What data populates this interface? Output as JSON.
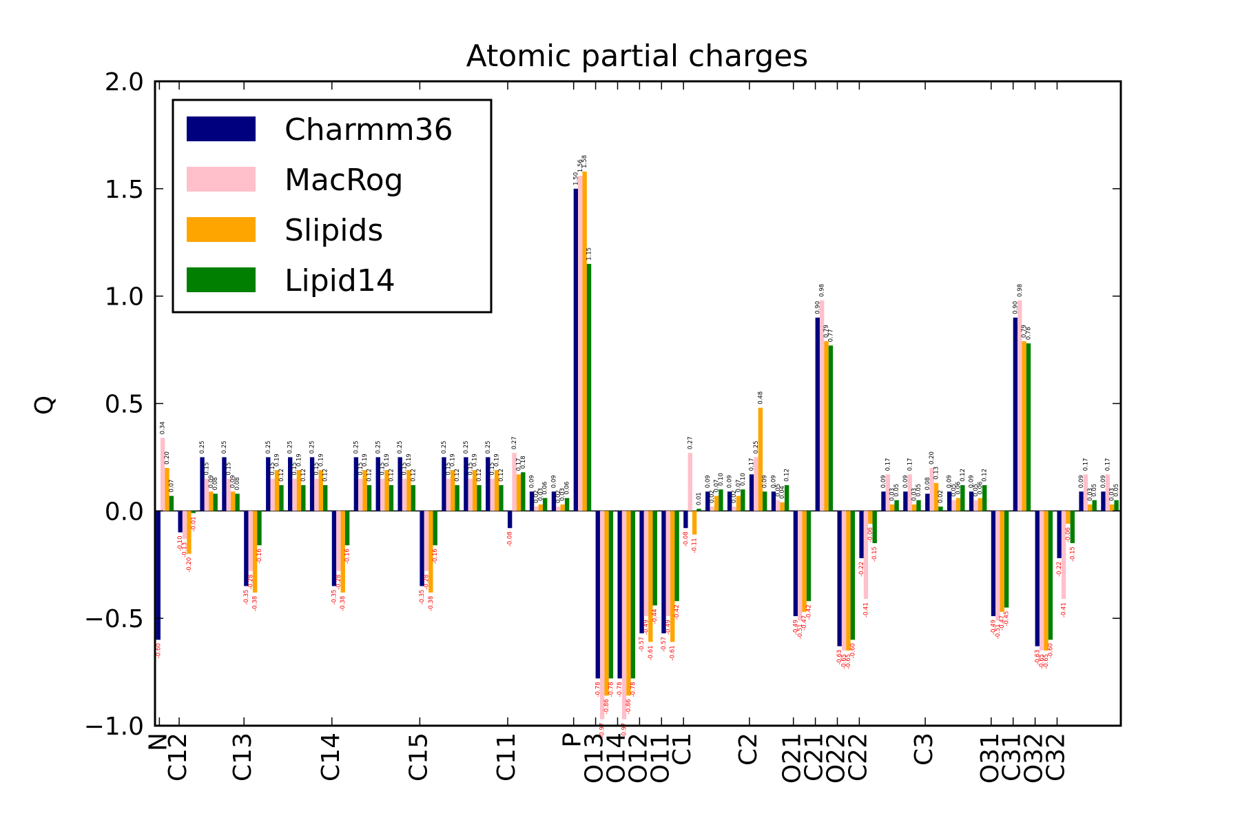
{
  "chart_data": {
    "type": "bar",
    "title": "Atomic partial charges",
    "ylabel": "Q",
    "xlabel": "",
    "ylim": [
      -1.0,
      2.0
    ],
    "yticks": [
      "−1.0",
      "−0.5",
      "0.0",
      "0.5",
      "1.0",
      "1.5",
      "2.0"
    ],
    "ytick_values": [
      -1.0,
      -0.5,
      0.0,
      0.5,
      1.0,
      1.5,
      2.0
    ],
    "legend_position": "upper-left",
    "colors": {
      "Charmm36": "#00007f",
      "MacRog": "#ffc0cb",
      "Slipids": "#ffa500",
      "Lipid14": "#007f00",
      "positive_label": "#000000",
      "negative_label": "#ff0000"
    },
    "categories": [
      "N",
      "C12",
      "",
      "",
      "C13",
      "",
      "",
      "",
      "C14",
      "",
      "",
      "",
      "C15",
      "",
      "",
      "",
      "C11",
      "",
      "",
      "P",
      "O13",
      "O14",
      "O12",
      "O11",
      "C1",
      "",
      "",
      "C2",
      "",
      "",
      "O21",
      "C21",
      "O22",
      "C22",
      "",
      "",
      "C3",
      "",
      "",
      "O31",
      "C31",
      "O32",
      "C32",
      ""
    ],
    "tick_labels": [
      {
        "label": "N",
        "pos": 0.15
      },
      {
        "label": "C12",
        "pos": 1.05
      },
      {
        "label": "C13",
        "pos": 4
      },
      {
        "label": "C14",
        "pos": 8
      },
      {
        "label": "C15",
        "pos": 12
      },
      {
        "label": "C11",
        "pos": 16
      },
      {
        "label": "P",
        "pos": 19
      },
      {
        "label": "O13",
        "pos": 20
      },
      {
        "label": "O14",
        "pos": 21
      },
      {
        "label": "O12",
        "pos": 22
      },
      {
        "label": "O11",
        "pos": 23
      },
      {
        "label": "C1",
        "pos": 24
      },
      {
        "label": "C2",
        "pos": 27
      },
      {
        "label": "O21",
        "pos": 29
      },
      {
        "label": "C21",
        "pos": 30
      },
      {
        "label": "O22",
        "pos": 31
      },
      {
        "label": "C22",
        "pos": 32
      },
      {
        "label": "C3",
        "pos": 35
      },
      {
        "label": "O31",
        "pos": 38
      },
      {
        "label": "C31",
        "pos": 39
      },
      {
        "label": "O32",
        "pos": 40
      },
      {
        "label": "C32",
        "pos": 41
      }
    ],
    "series": [
      {
        "name": "Charmm36",
        "values": [
          -0.6,
          -0.1,
          0.25,
          0.25,
          -0.35,
          0.25,
          0.25,
          0.25,
          -0.35,
          0.25,
          0.25,
          0.25,
          -0.35,
          0.25,
          0.25,
          0.25,
          -0.08,
          0.09,
          0.09,
          1.5,
          -0.78,
          -0.78,
          -0.57,
          -0.57,
          -0.08,
          0.09,
          0.09,
          0.17,
          0.09,
          -0.49,
          0.9,
          -0.63,
          -0.22,
          0.09,
          0.09,
          0.08,
          0.09,
          0.09,
          -0.49,
          0.9,
          -0.63,
          -0.22,
          0.09,
          0.09
        ]
      },
      {
        "name": "MacRog",
        "values": [
          0.34,
          -0.13,
          0.15,
          0.15,
          -0.28,
          0.15,
          0.15,
          0.15,
          -0.28,
          0.15,
          0.15,
          0.15,
          -0.28,
          0.15,
          0.15,
          0.15,
          0.27,
          0.02,
          0.02,
          1.56,
          -0.97,
          -0.97,
          -0.49,
          -0.49,
          0.27,
          0.02,
          0.02,
          0.25,
          0.05,
          -0.51,
          0.98,
          -0.65,
          -0.41,
          0.17,
          0.17,
          0.2,
          0.05,
          0.05,
          -0.51,
          0.98,
          -0.65,
          -0.41,
          0.17,
          0.17
        ]
      },
      {
        "name": "Slipids",
        "values": [
          0.2,
          -0.2,
          0.09,
          0.09,
          -0.38,
          0.19,
          0.19,
          0.19,
          -0.38,
          0.19,
          0.19,
          0.19,
          -0.38,
          0.19,
          0.19,
          0.19,
          0.17,
          0.03,
          0.03,
          1.58,
          -0.86,
          -0.86,
          -0.61,
          -0.61,
          -0.11,
          0.07,
          0.07,
          0.48,
          0.04,
          -0.47,
          0.79,
          -0.65,
          -0.06,
          0.03,
          0.03,
          0.13,
          0.06,
          0.06,
          -0.47,
          0.79,
          -0.65,
          -0.06,
          0.03,
          0.03
        ]
      },
      {
        "name": "Lipid14",
        "values": [
          0.07,
          -0.01,
          0.08,
          0.08,
          -0.16,
          0.12,
          0.12,
          0.12,
          -0.16,
          0.12,
          0.12,
          0.12,
          -0.16,
          0.12,
          0.12,
          0.12,
          0.18,
          0.06,
          0.06,
          1.15,
          -0.78,
          -0.78,
          -0.44,
          -0.42,
          0.01,
          0.1,
          0.1,
          0.09,
          0.12,
          -0.42,
          0.77,
          -0.6,
          -0.15,
          0.05,
          0.05,
          0.02,
          0.12,
          0.12,
          -0.45,
          0.78,
          -0.6,
          -0.15,
          0.05,
          0.05
        ]
      }
    ]
  }
}
